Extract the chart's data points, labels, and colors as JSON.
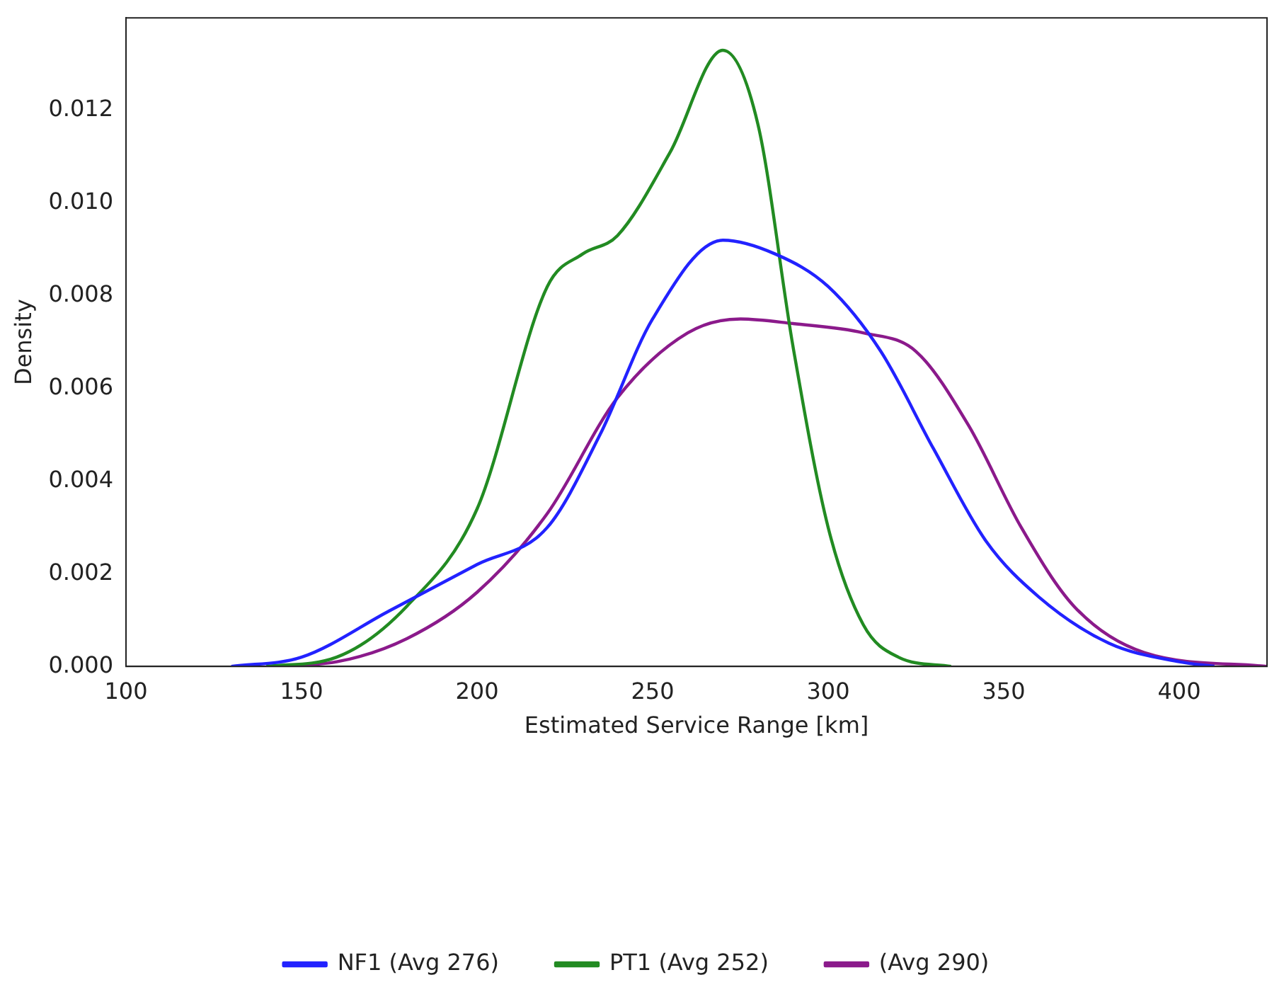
{
  "chart_data": {
    "type": "line",
    "xlabel": "Estimated Service Range [km]",
    "ylabel": "Density",
    "xlim": [
      100,
      425
    ],
    "xticks": [
      100,
      150,
      200,
      250,
      300,
      350,
      400
    ],
    "ylim": [
      0,
      0.014
    ],
    "yticks": [
      {
        "value": 0,
        "label": "0.000"
      },
      {
        "value": 0.002,
        "label": "0.002"
      },
      {
        "value": 0.004,
        "label": "0.004"
      },
      {
        "value": 0.006,
        "label": "0.006"
      },
      {
        "value": 0.008,
        "label": "0.008"
      },
      {
        "value": 0.01,
        "label": "0.010"
      },
      {
        "value": 0.012,
        "label": "0.012"
      }
    ],
    "grid": false,
    "legend": "bottom",
    "marker": "none",
    "line_style": "solid",
    "series": [
      {
        "name": "NF1 (Avg 276)",
        "color": "#2222ff",
        "x": [
          130,
          150,
          175,
          200,
          220,
          235,
          250,
          270,
          285,
          300,
          315,
          330,
          345,
          360,
          380,
          400,
          410
        ],
        "values": [
          0,
          0.0002,
          0.0012,
          0.0022,
          0.003,
          0.005,
          0.0075,
          0.0092,
          0.0089,
          0.0082,
          0.0068,
          0.0047,
          0.0027,
          0.0015,
          0.0005,
          0.0001,
          0
        ]
      },
      {
        "name": "PT1 (Avg 252)",
        "color": "#228b22",
        "x": [
          140,
          160,
          180,
          200,
          220,
          230,
          240,
          255,
          270,
          280,
          290,
          300,
          310,
          320,
          335
        ],
        "values": [
          0,
          0.0002,
          0.0013,
          0.0034,
          0.0082,
          0.0089,
          0.0093,
          0.0111,
          0.0133,
          0.0117,
          0.0069,
          0.003,
          0.0009,
          0.0002,
          0
        ]
      },
      {
        "name": "(Avg 290)",
        "color": "#8b1a8b",
        "x": [
          140,
          160,
          180,
          200,
          220,
          240,
          260,
          275,
          290,
          310,
          325,
          340,
          355,
          370,
          390,
          425
        ],
        "values": [
          0,
          0.0001,
          0.0006,
          0.0016,
          0.0033,
          0.0058,
          0.0072,
          0.0075,
          0.0074,
          0.0072,
          0.0068,
          0.0052,
          0.003,
          0.0013,
          0.0003,
          0
        ]
      }
    ]
  }
}
